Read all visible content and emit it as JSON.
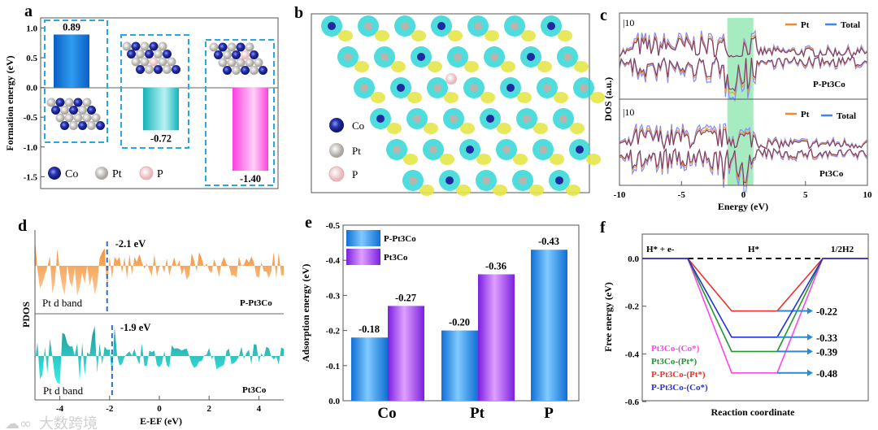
{
  "panel_labels": {
    "a": "a",
    "b": "b",
    "c": "c",
    "d": "d",
    "e": "e",
    "f": "f"
  },
  "legend_atoms": {
    "co": "Co",
    "pt": "Pt",
    "p": "P"
  },
  "colors": {
    "co": "#1f2a9c",
    "pt": "#b8b4ad",
    "p": "#f4dede",
    "dash_box": "#29a8e0",
    "orange": "#f08a2c",
    "blue": "#3d86f0",
    "purple": "#8a3fd8",
    "cyan_fill": "#13c9c9",
    "orange_fill": "#f7a356",
    "band": "#5fdc8c"
  },
  "chart_data": [
    {
      "id": "a",
      "type": "bar",
      "ylabel": "Formation energy (eV)",
      "ylim": [
        -1.7,
        1.17
      ],
      "yticks": [
        1.0,
        0.5,
        0.0,
        -0.5,
        -1.0,
        -1.5
      ],
      "ytick_labels": [
        "1.0",
        "0.5",
        "0.0",
        "-0.5",
        "-1.0",
        "-1.5"
      ],
      "values": [
        0.89,
        -0.72,
        -1.4
      ],
      "value_labels": [
        "0.89",
        "-0.72",
        "-1.40"
      ],
      "bar_colors": [
        "#1173d6",
        "#22c2c9",
        "#ff55e6"
      ]
    },
    {
      "id": "c",
      "type": "line",
      "xlabel": "Energy (eV)",
      "ylabel": "DOS (a.u.)",
      "xlim": [
        -10,
        10
      ],
      "xticks": [
        -10,
        -5,
        0,
        5,
        10
      ],
      "xtick_labels": [
        "-10",
        "-5",
        "0",
        "5",
        "10"
      ],
      "scale_label": "|10",
      "highlight_band": [
        -1.3,
        0.8
      ],
      "series": [
        "Pt",
        "Total"
      ],
      "subplots": [
        "P-Pt3Co",
        "Pt3Co"
      ]
    },
    {
      "id": "d",
      "type": "area",
      "xlabel": "E-EF (eV)",
      "ylabel": "PDOS",
      "xlim": [
        -5,
        5
      ],
      "xticks": [
        -4,
        -2,
        0,
        2,
        4
      ],
      "xtick_labels": [
        "-4",
        "-2",
        "0",
        "2",
        "4"
      ],
      "subplots": [
        {
          "name": "P-Pt3Co",
          "band_label": "Pt d band",
          "d_band_center": -2.1,
          "center_label": "-2.1 eV"
        },
        {
          "name": "Pt3Co",
          "band_label": "Pt d band",
          "d_band_center": -1.9,
          "center_label": "-1.9 eV"
        }
      ]
    },
    {
      "id": "e",
      "type": "bar",
      "ylabel": "Adsorption energy (eV)",
      "ylim": [
        0,
        -0.5
      ],
      "yticks": [
        0.0,
        -0.1,
        -0.2,
        -0.3,
        -0.4,
        -0.5
      ],
      "ytick_labels": [
        "0.0",
        "-0.1",
        "-0.2",
        "-0.3",
        "-0.4",
        "-0.5"
      ],
      "categories": [
        "Co",
        "Pt",
        "P"
      ],
      "series": [
        {
          "name": "P-Pt3Co",
          "values": [
            -0.18,
            -0.2,
            -0.43
          ],
          "labels": [
            "-0.18",
            "-0.20",
            "-0.43"
          ]
        },
        {
          "name": "Pt3Co",
          "values": [
            -0.27,
            -0.36,
            null
          ],
          "labels": [
            "-0.27",
            "-0.36",
            ""
          ]
        }
      ]
    },
    {
      "id": "f",
      "type": "line",
      "xlabel": "Reaction coordinate",
      "ylabel": "Free energy (eV)",
      "ylim": [
        -0.6,
        0.08
      ],
      "yticks": [
        0.0,
        -0.2,
        -0.4,
        -0.6
      ],
      "ytick_labels": [
        "0.0",
        "-0.2",
        "-0.4",
        "-0.6"
      ],
      "states": [
        "H* + e-",
        "H*",
        "1/2H2"
      ],
      "series": [
        {
          "name": "Pt3Co-(Co*)",
          "color": "#ff44e8",
          "value": -0.48,
          "label": "-0.48"
        },
        {
          "name": "Pt3Co-(Pt*)",
          "color": "#1e9a2a",
          "value": -0.39,
          "label": "-0.39"
        },
        {
          "name": "P-Pt3Co-(Pt*)",
          "color": "#f0302a",
          "value": -0.22,
          "label": "-0.22"
        },
        {
          "name": "P-Pt3Co-(Co*)",
          "color": "#2330e0",
          "value": -0.33,
          "label": "-0.33"
        }
      ]
    }
  ],
  "watermark": "大数跨境"
}
